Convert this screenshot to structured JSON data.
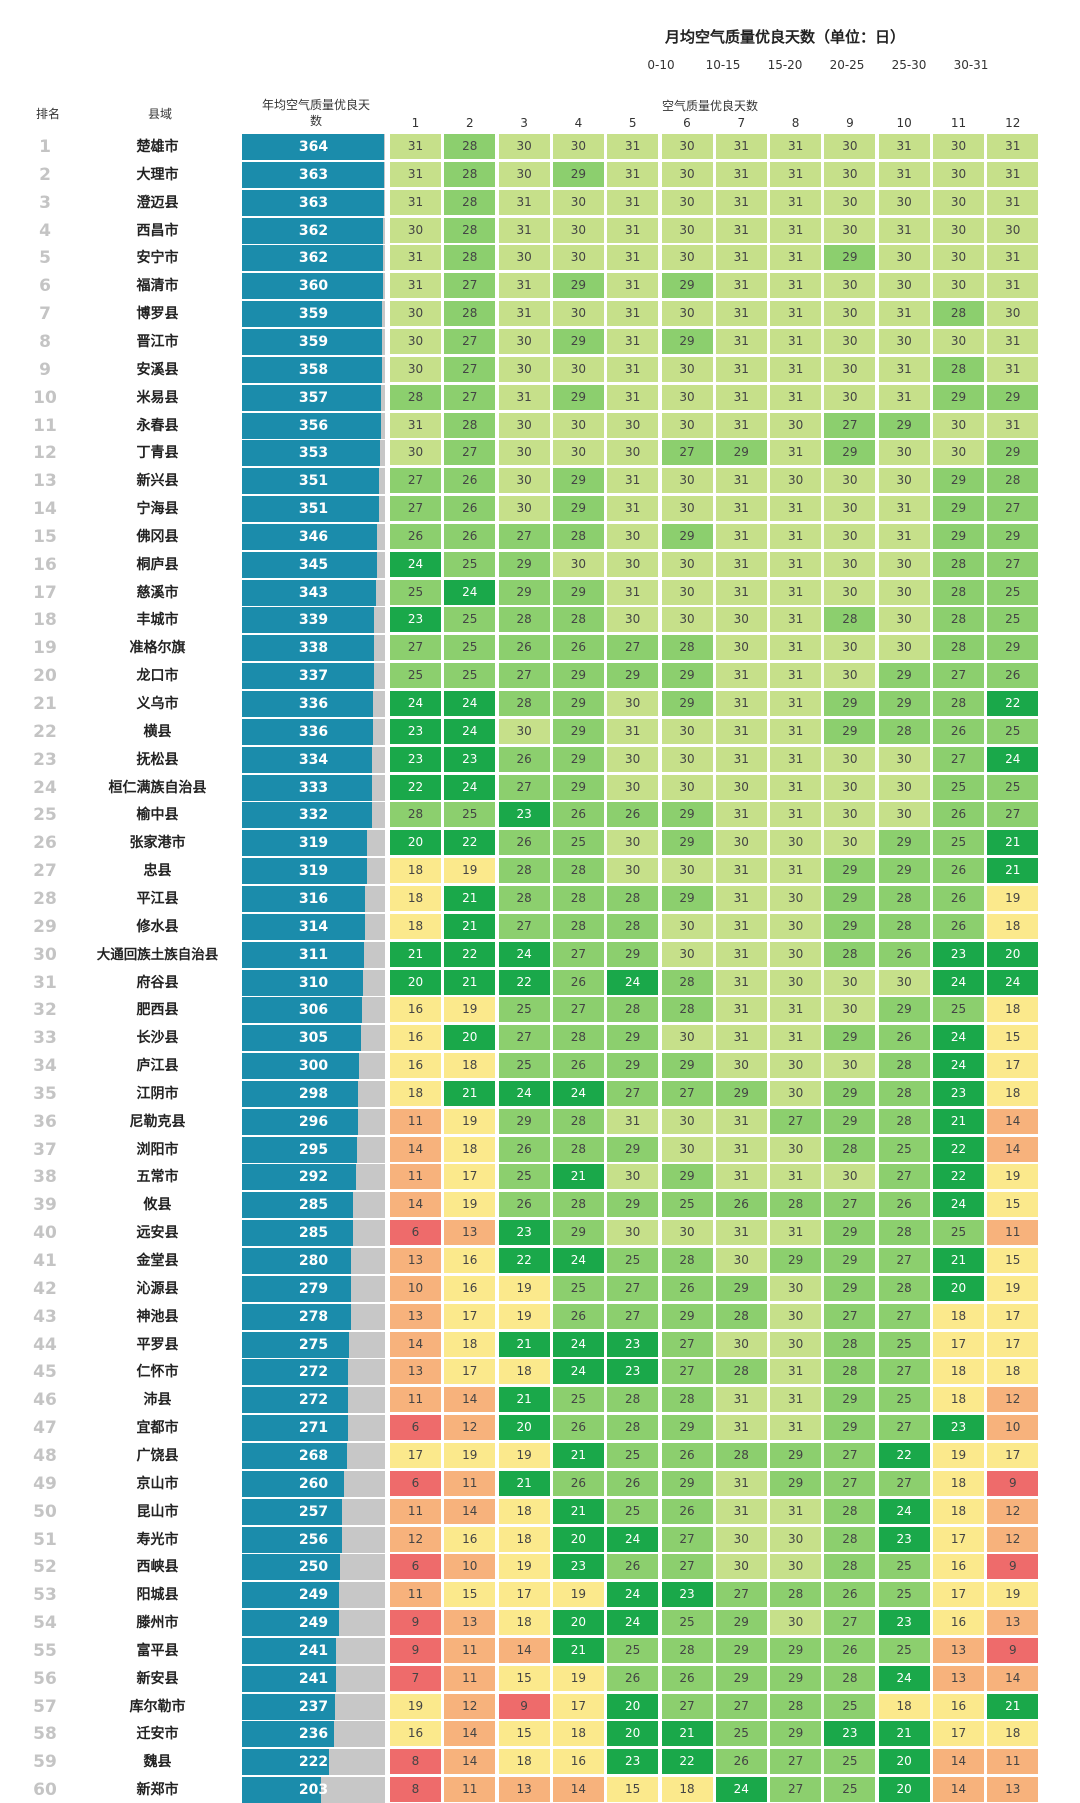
{
  "chart_data": {
    "type": "table",
    "title": "月均空气质量优良天数（单位：日）",
    "months_header": "空气质量优良天数",
    "col_rank": "排名",
    "col_county": "县域",
    "col_annual": "年均空气质量优良天数",
    "annual_max": 366,
    "months": [
      "1",
      "2",
      "3",
      "4",
      "5",
      "6",
      "7",
      "8",
      "9",
      "10",
      "11",
      "12"
    ],
    "legend": [
      {
        "label": "0-10",
        "color": "#e8812e"
      },
      {
        "label": "10-15",
        "color": "#f4b183"
      },
      {
        "label": "15-20",
        "color": "#fbe98c"
      },
      {
        "label": "20-25",
        "color": "#1aa84a"
      },
      {
        "label": "25-30",
        "color": "#8ccf6e"
      },
      {
        "label": "30-31",
        "color": "#c6e08a"
      }
    ],
    "rows": [
      {
        "rank": "1",
        "name": "楚雄市",
        "annual": 364,
        "m": [
          31,
          28,
          30,
          30,
          31,
          30,
          31,
          31,
          30,
          31,
          30,
          31
        ]
      },
      {
        "rank": "2",
        "name": "大理市",
        "annual": 363,
        "m": [
          31,
          28,
          30,
          29,
          31,
          30,
          31,
          31,
          30,
          31,
          30,
          31
        ]
      },
      {
        "rank": "3",
        "name": "澄迈县",
        "annual": 363,
        "m": [
          31,
          28,
          31,
          30,
          31,
          30,
          31,
          31,
          30,
          30,
          30,
          31
        ]
      },
      {
        "rank": "4",
        "name": "西昌市",
        "annual": 362,
        "m": [
          30,
          28,
          31,
          30,
          31,
          30,
          31,
          31,
          30,
          31,
          30,
          30
        ]
      },
      {
        "rank": "5",
        "name": "安宁市",
        "annual": 362,
        "m": [
          31,
          28,
          30,
          30,
          31,
          30,
          31,
          31,
          29,
          30,
          30,
          31
        ]
      },
      {
        "rank": "6",
        "name": "福清市",
        "annual": 360,
        "m": [
          31,
          27,
          31,
          29,
          31,
          29,
          31,
          31,
          30,
          30,
          30,
          31
        ]
      },
      {
        "rank": "7",
        "name": "博罗县",
        "annual": 359,
        "m": [
          30,
          28,
          31,
          30,
          31,
          30,
          31,
          31,
          30,
          31,
          28,
          30
        ]
      },
      {
        "rank": "8",
        "name": "晋江市",
        "annual": 359,
        "m": [
          30,
          27,
          30,
          29,
          31,
          29,
          31,
          31,
          30,
          30,
          30,
          31
        ]
      },
      {
        "rank": "9",
        "name": "安溪县",
        "annual": 358,
        "m": [
          30,
          27,
          30,
          30,
          31,
          30,
          31,
          31,
          30,
          31,
          28,
          31
        ]
      },
      {
        "rank": "10",
        "name": "米易县",
        "annual": 357,
        "m": [
          28,
          27,
          31,
          29,
          31,
          30,
          31,
          31,
          30,
          31,
          29,
          29
        ]
      },
      {
        "rank": "11",
        "name": "永春县",
        "annual": 356,
        "m": [
          31,
          28,
          30,
          30,
          30,
          30,
          31,
          30,
          27,
          29,
          30,
          31
        ]
      },
      {
        "rank": "12",
        "name": "丁青县",
        "annual": 353,
        "m": [
          30,
          27,
          30,
          30,
          30,
          27,
          29,
          31,
          29,
          30,
          30,
          29
        ]
      },
      {
        "rank": "13",
        "name": "新兴县",
        "annual": 351,
        "m": [
          27,
          26,
          30,
          29,
          31,
          30,
          31,
          30,
          30,
          30,
          29,
          28
        ]
      },
      {
        "rank": "14",
        "name": "宁海县",
        "annual": 351,
        "m": [
          27,
          26,
          30,
          29,
          31,
          30,
          31,
          31,
          30,
          31,
          29,
          27
        ]
      },
      {
        "rank": "15",
        "name": "佛冈县",
        "annual": 346,
        "m": [
          26,
          26,
          27,
          28,
          30,
          29,
          31,
          31,
          30,
          31,
          29,
          29
        ]
      },
      {
        "rank": "16",
        "name": "桐庐县",
        "annual": 345,
        "m": [
          24,
          25,
          29,
          30,
          30,
          30,
          31,
          31,
          30,
          30,
          28,
          27
        ]
      },
      {
        "rank": "17",
        "name": "慈溪市",
        "annual": 343,
        "m": [
          25,
          24,
          29,
          29,
          31,
          30,
          31,
          31,
          30,
          30,
          28,
          25
        ]
      },
      {
        "rank": "18",
        "name": "丰城市",
        "annual": 339,
        "m": [
          23,
          25,
          28,
          28,
          30,
          30,
          30,
          31,
          28,
          30,
          28,
          25
        ]
      },
      {
        "rank": "19",
        "name": "准格尔旗",
        "annual": 338,
        "m": [
          27,
          25,
          26,
          26,
          27,
          28,
          30,
          31,
          30,
          30,
          28,
          29
        ]
      },
      {
        "rank": "20",
        "name": "龙口市",
        "annual": 337,
        "m": [
          25,
          25,
          27,
          29,
          29,
          29,
          31,
          31,
          30,
          29,
          27,
          26
        ]
      },
      {
        "rank": "21",
        "name": "义乌市",
        "annual": 336,
        "m": [
          24,
          24,
          28,
          29,
          30,
          29,
          31,
          31,
          29,
          29,
          28,
          22
        ]
      },
      {
        "rank": "22",
        "name": "横县",
        "annual": 336,
        "m": [
          23,
          24,
          30,
          29,
          31,
          30,
          31,
          31,
          29,
          28,
          26,
          25
        ]
      },
      {
        "rank": "23",
        "name": "抚松县",
        "annual": 334,
        "m": [
          23,
          23,
          26,
          29,
          30,
          30,
          31,
          31,
          30,
          30,
          27,
          24
        ]
      },
      {
        "rank": "24",
        "name": "桓仁满族自治县",
        "annual": 333,
        "m": [
          22,
          24,
          27,
          29,
          30,
          30,
          30,
          31,
          30,
          30,
          25,
          25
        ]
      },
      {
        "rank": "25",
        "name": "榆中县",
        "annual": 332,
        "m": [
          28,
          25,
          23,
          26,
          26,
          29,
          31,
          31,
          30,
          30,
          26,
          27
        ]
      },
      {
        "rank": "26",
        "name": "张家港市",
        "annual": 319,
        "m": [
          20,
          22,
          26,
          25,
          30,
          29,
          30,
          30,
          30,
          29,
          25,
          21
        ]
      },
      {
        "rank": "27",
        "name": "忠县",
        "annual": 319,
        "m": [
          18,
          19,
          28,
          28,
          30,
          30,
          31,
          31,
          29,
          29,
          26,
          21
        ]
      },
      {
        "rank": "28",
        "name": "平江县",
        "annual": 316,
        "m": [
          18,
          21,
          28,
          28,
          28,
          29,
          31,
          30,
          29,
          28,
          26,
          19
        ]
      },
      {
        "rank": "29",
        "name": "修水县",
        "annual": 314,
        "m": [
          18,
          21,
          27,
          28,
          28,
          30,
          31,
          30,
          29,
          28,
          26,
          18
        ]
      },
      {
        "rank": "30",
        "name": "大通回族土族自治县",
        "annual": 311,
        "m": [
          21,
          22,
          24,
          27,
          29,
          30,
          31,
          30,
          28,
          26,
          23,
          20
        ]
      },
      {
        "rank": "31",
        "name": "府谷县",
        "annual": 310,
        "m": [
          20,
          21,
          22,
          26,
          24,
          28,
          31,
          30,
          30,
          30,
          24,
          24
        ]
      },
      {
        "rank": "32",
        "name": "肥西县",
        "annual": 306,
        "m": [
          16,
          19,
          25,
          27,
          28,
          28,
          31,
          31,
          30,
          29,
          25,
          18
        ]
      },
      {
        "rank": "33",
        "name": "长沙县",
        "annual": 305,
        "m": [
          16,
          20,
          27,
          28,
          29,
          30,
          31,
          31,
          29,
          26,
          24,
          15
        ]
      },
      {
        "rank": "34",
        "name": "庐江县",
        "annual": 300,
        "m": [
          16,
          18,
          25,
          26,
          29,
          29,
          30,
          30,
          30,
          28,
          24,
          17
        ]
      },
      {
        "rank": "35",
        "name": "江阴市",
        "annual": 298,
        "m": [
          18,
          21,
          24,
          24,
          27,
          27,
          29,
          30,
          29,
          28,
          23,
          18
        ]
      },
      {
        "rank": "36",
        "name": "尼勒克县",
        "annual": 296,
        "m": [
          11,
          19,
          29,
          28,
          31,
          30,
          31,
          27,
          29,
          28,
          21,
          14
        ]
      },
      {
        "rank": "37",
        "name": "浏阳市",
        "annual": 295,
        "m": [
          14,
          18,
          26,
          28,
          29,
          30,
          31,
          30,
          28,
          25,
          22,
          14
        ]
      },
      {
        "rank": "38",
        "name": "五常市",
        "annual": 292,
        "m": [
          11,
          17,
          25,
          21,
          30,
          29,
          31,
          31,
          30,
          27,
          22,
          19
        ]
      },
      {
        "rank": "39",
        "name": "攸县",
        "annual": 285,
        "m": [
          14,
          19,
          26,
          28,
          29,
          25,
          26,
          28,
          27,
          26,
          24,
          15
        ]
      },
      {
        "rank": "40",
        "name": "远安县",
        "annual": 285,
        "m": [
          6,
          13,
          23,
          29,
          30,
          30,
          31,
          31,
          29,
          28,
          25,
          11
        ]
      },
      {
        "rank": "41",
        "name": "金堂县",
        "annual": 280,
        "m": [
          13,
          16,
          22,
          24,
          25,
          28,
          30,
          29,
          29,
          27,
          21,
          15
        ]
      },
      {
        "rank": "42",
        "name": "沁源县",
        "annual": 279,
        "m": [
          10,
          16,
          19,
          25,
          27,
          26,
          29,
          30,
          29,
          28,
          20,
          19
        ]
      },
      {
        "rank": "43",
        "name": "神池县",
        "annual": 278,
        "m": [
          13,
          17,
          19,
          26,
          27,
          29,
          28,
          30,
          27,
          27,
          18,
          17
        ]
      },
      {
        "rank": "44",
        "name": "平罗县",
        "annual": 275,
        "m": [
          14,
          18,
          21,
          24,
          23,
          27,
          30,
          30,
          28,
          25,
          17,
          17
        ]
      },
      {
        "rank": "45",
        "name": "仁怀市",
        "annual": 272,
        "m": [
          13,
          17,
          18,
          24,
          23,
          27,
          28,
          31,
          28,
          27,
          18,
          18
        ]
      },
      {
        "rank": "46",
        "name": "沛县",
        "annual": 272,
        "m": [
          11,
          14,
          21,
          25,
          28,
          28,
          31,
          31,
          29,
          25,
          18,
          12
        ]
      },
      {
        "rank": "47",
        "name": "宜都市",
        "annual": 271,
        "m": [
          6,
          12,
          20,
          26,
          28,
          29,
          31,
          31,
          29,
          27,
          23,
          10
        ]
      },
      {
        "rank": "48",
        "name": "广饶县",
        "annual": 268,
        "m": [
          17,
          19,
          19,
          21,
          25,
          26,
          28,
          29,
          27,
          22,
          19,
          17
        ]
      },
      {
        "rank": "49",
        "name": "京山市",
        "annual": 260,
        "m": [
          6,
          11,
          21,
          26,
          26,
          29,
          31,
          29,
          27,
          27,
          18,
          9
        ]
      },
      {
        "rank": "50",
        "name": "昆山市",
        "annual": 257,
        "m": [
          11,
          14,
          18,
          21,
          25,
          26,
          31,
          31,
          28,
          24,
          18,
          12
        ]
      },
      {
        "rank": "51",
        "name": "寿光市",
        "annual": 256,
        "m": [
          12,
          16,
          18,
          20,
          24,
          27,
          30,
          30,
          28,
          23,
          17,
          12
        ]
      },
      {
        "rank": "52",
        "name": "西峡县",
        "annual": 250,
        "m": [
          6,
          10,
          19,
          23,
          26,
          27,
          30,
          30,
          28,
          25,
          16,
          9
        ]
      },
      {
        "rank": "53",
        "name": "阳城县",
        "annual": 249,
        "m": [
          11,
          15,
          17,
          19,
          24,
          23,
          27,
          28,
          26,
          25,
          17,
          19
        ]
      },
      {
        "rank": "54",
        "name": "滕州市",
        "annual": 249,
        "m": [
          9,
          13,
          18,
          20,
          24,
          25,
          29,
          30,
          27,
          23,
          16,
          13
        ]
      },
      {
        "rank": "55",
        "name": "富平县",
        "annual": 241,
        "m": [
          9,
          11,
          14,
          21,
          25,
          28,
          29,
          29,
          26,
          25,
          13,
          9
        ]
      },
      {
        "rank": "56",
        "name": "新安县",
        "annual": 241,
        "m": [
          7,
          11,
          15,
          19,
          26,
          26,
          29,
          29,
          28,
          24,
          13,
          14
        ]
      },
      {
        "rank": "57",
        "name": "库尔勒市",
        "annual": 237,
        "m": [
          19,
          12,
          9,
          17,
          20,
          27,
          27,
          28,
          25,
          18,
          16,
          21
        ]
      },
      {
        "rank": "58",
        "name": "迁安市",
        "annual": 236,
        "m": [
          16,
          14,
          15,
          18,
          20,
          21,
          25,
          29,
          23,
          21,
          17,
          18
        ]
      },
      {
        "rank": "59",
        "name": "魏县",
        "annual": 222,
        "m": [
          8,
          14,
          18,
          16,
          23,
          22,
          26,
          27,
          25,
          20,
          14,
          11
        ]
      },
      {
        "rank": "60",
        "name": "新郑市",
        "annual": 203,
        "m": [
          8,
          11,
          13,
          14,
          15,
          18,
          24,
          27,
          25,
          20,
          14,
          13
        ]
      }
    ]
  }
}
